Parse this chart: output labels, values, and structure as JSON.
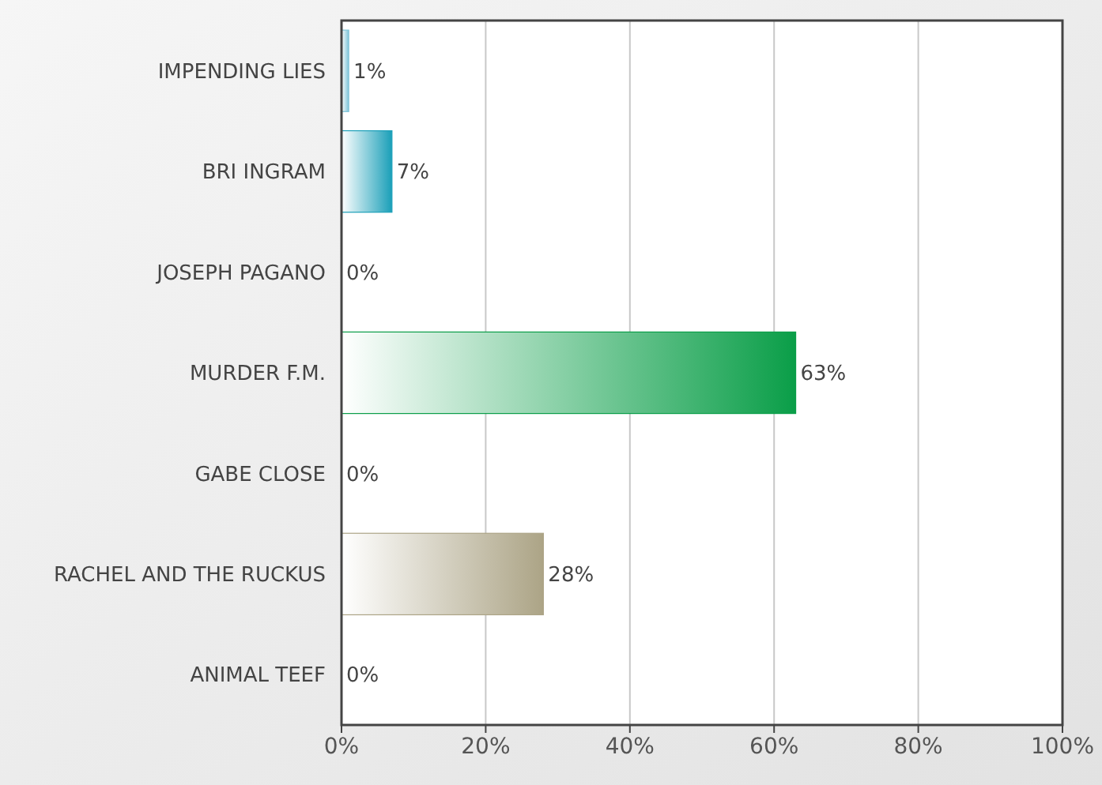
{
  "chart_data": {
    "type": "bar",
    "orientation": "horizontal",
    "categories": [
      "IMPENDING LIES",
      "BRI INGRAM",
      "JOSEPH PAGANO",
      "MURDER F.M.",
      "GABE CLOSE",
      "RACHEL AND THE RUCKUS",
      "ANIMAL TEEF"
    ],
    "values": [
      1,
      7,
      0,
      63,
      0,
      28,
      0
    ],
    "colors": [
      "#7fc4d8",
      "#1a9fb8",
      "#888888",
      "#0a9e48",
      "#888888",
      "#aca486",
      "#888888"
    ],
    "value_labels": [
      "1%",
      "7%",
      "0%",
      "63%",
      "0%",
      "28%",
      "0%"
    ],
    "xlim": [
      0,
      100
    ],
    "xticks": [
      {
        "value": 0,
        "label": "0%"
      },
      {
        "value": 20,
        "label": "20%"
      },
      {
        "value": 40,
        "label": "40%"
      },
      {
        "value": 60,
        "label": "60%"
      },
      {
        "value": 80,
        "label": "80%"
      },
      {
        "value": 100,
        "label": "100%"
      }
    ],
    "grid": "x"
  }
}
